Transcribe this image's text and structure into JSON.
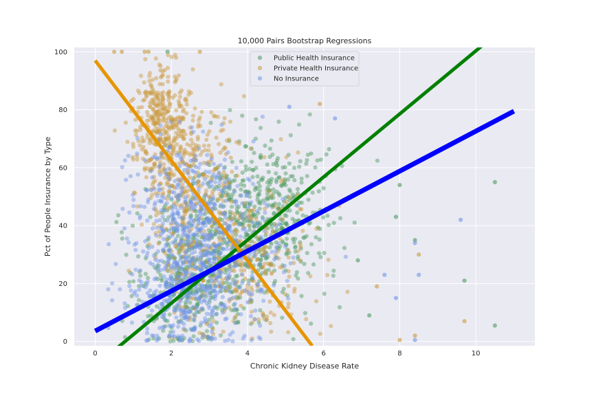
{
  "chart_data": {
    "type": "scatter",
    "title": "10,000 Pairs Bootstrap Regressions",
    "xlabel": "Chronic Kidney Disease Rate",
    "ylabel": "Pct of People Insurance by Type",
    "xlim": [
      -0.55,
      11.55
    ],
    "ylim": [
      -1.5,
      101.5
    ],
    "x_ticks": [
      0,
      2,
      4,
      6,
      8,
      10
    ],
    "y_ticks": [
      0,
      20,
      40,
      60,
      80,
      100
    ],
    "grid": true,
    "legend_position": "top-center",
    "series": [
      {
        "name": "Public Health Insurance",
        "color": "#4c9a5f",
        "line_color": "#008000",
        "regression_line": {
          "x": [
            0.6,
            10.2
          ],
          "y": [
            -2.0,
            102.5
          ]
        },
        "clusters": [
          {
            "cx": 2.4,
            "cy": 22,
            "sx": 0.7,
            "sy": 12
          },
          {
            "cx": 3.6,
            "cy": 38,
            "sx": 0.9,
            "sy": 15
          },
          {
            "cx": 4.6,
            "cy": 45,
            "sx": 0.8,
            "sy": 14
          }
        ],
        "outliers": [
          {
            "x": 1.9,
            "y": 100
          },
          {
            "x": 7.9,
            "y": 43
          },
          {
            "x": 8.4,
            "y": 35
          },
          {
            "x": 9.7,
            "y": 21
          },
          {
            "x": 10.5,
            "y": 55
          },
          {
            "x": 10.5,
            "y": 5.5
          },
          {
            "x": 7.2,
            "y": 9
          },
          {
            "x": 6.9,
            "y": 28
          },
          {
            "x": 8.0,
            "y": 54
          }
        ]
      },
      {
        "name": "Private Health Insurance",
        "color": "#c99a3c",
        "line_color": "#e69500",
        "regression_line": {
          "x": [
            0.0,
            5.7
          ],
          "y": [
            97.0,
            -1.5
          ]
        },
        "clusters": [
          {
            "cx": 1.7,
            "cy": 75,
            "sx": 0.35,
            "sy": 10
          },
          {
            "cx": 2.4,
            "cy": 55,
            "sx": 0.6,
            "sy": 15
          },
          {
            "cx": 3.8,
            "cy": 30,
            "sx": 1.1,
            "sy": 14
          }
        ],
        "outliers": [
          {
            "x": 0.5,
            "y": 100
          },
          {
            "x": 0.7,
            "y": 100
          },
          {
            "x": 1.3,
            "y": 100
          },
          {
            "x": 1.4,
            "y": 100
          },
          {
            "x": 2.75,
            "y": 100
          },
          {
            "x": 8.0,
            "y": 0.5
          },
          {
            "x": 8.4,
            "y": 2
          },
          {
            "x": 8.5,
            "y": 30
          },
          {
            "x": 9.7,
            "y": 7
          },
          {
            "x": 7.4,
            "y": 19
          },
          {
            "x": 5.9,
            "y": 82
          }
        ]
      },
      {
        "name": "No Insurance",
        "color": "#6f95e6",
        "line_color": "#0000ff",
        "regression_line": {
          "x": [
            0.0,
            11.0
          ],
          "y": [
            3.6,
            79.5
          ]
        },
        "clusters": [
          {
            "cx": 2.3,
            "cy": 18,
            "sx": 0.7,
            "sy": 10
          },
          {
            "cx": 3.0,
            "cy": 28,
            "sx": 1.0,
            "sy": 15
          },
          {
            "cx": 2.6,
            "cy": 45,
            "sx": 0.8,
            "sy": 12
          }
        ],
        "outliers": [
          {
            "x": 5.1,
            "y": 81
          },
          {
            "x": 7.6,
            "y": 23
          },
          {
            "x": 7.9,
            "y": 15
          },
          {
            "x": 8.4,
            "y": 34
          },
          {
            "x": 8.4,
            "y": 0.5
          },
          {
            "x": 9.6,
            "y": 42
          },
          {
            "x": 6.3,
            "y": 77
          },
          {
            "x": 8.5,
            "y": 23
          }
        ]
      }
    ]
  }
}
